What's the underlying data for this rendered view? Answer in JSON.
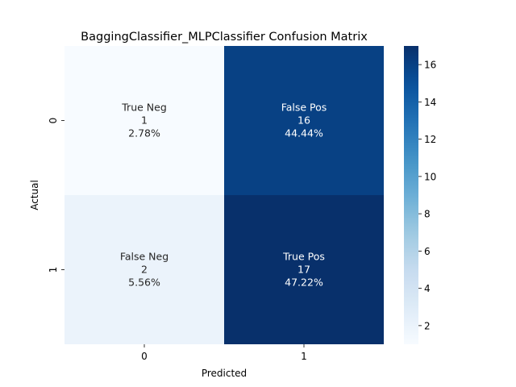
{
  "chart_data": {
    "type": "heatmap",
    "title": "BaggingClassifier_MLPClassifier Confusion Matrix",
    "xlabel": "Predicted",
    "ylabel": "Actual",
    "x_categories": [
      "0",
      "1"
    ],
    "y_categories": [
      "0",
      "1"
    ],
    "cells": [
      {
        "row": 0,
        "col": 0,
        "name": "True Neg",
        "value": 1,
        "percent": "2.78%"
      },
      {
        "row": 0,
        "col": 1,
        "name": "False Pos",
        "value": 16,
        "percent": "44.44%"
      },
      {
        "row": 1,
        "col": 0,
        "name": "False Neg",
        "value": 2,
        "percent": "5.56%"
      },
      {
        "row": 1,
        "col": 1,
        "name": "True Pos",
        "value": 17,
        "percent": "47.22%"
      }
    ],
    "colormap": "Blues",
    "color_range": [
      1,
      17
    ],
    "colorbar_ticks": [
      2,
      4,
      6,
      8,
      10,
      12,
      14,
      16
    ],
    "grid": false,
    "legend": "colorbar-right"
  }
}
